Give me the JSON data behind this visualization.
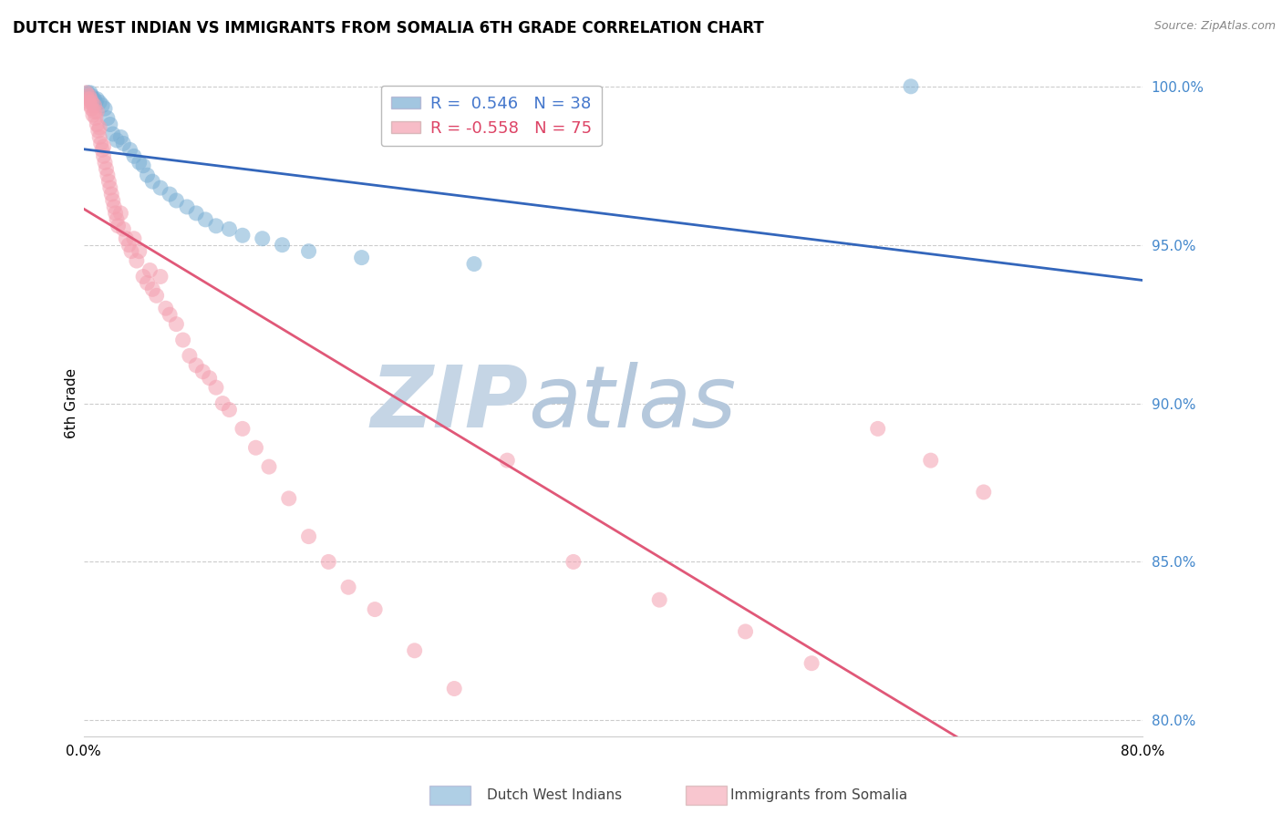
{
  "title": "DUTCH WEST INDIAN VS IMMIGRANTS FROM SOMALIA 6TH GRADE CORRELATION CHART",
  "source": "Source: ZipAtlas.com",
  "ylabel": "6th Grade",
  "xlim": [
    0.0,
    0.8
  ],
  "ylim": [
    0.795,
    1.005
  ],
  "xticks": [
    0.0,
    0.1,
    0.2,
    0.3,
    0.4,
    0.5,
    0.6,
    0.7,
    0.8
  ],
  "xticklabels": [
    "0.0%",
    "",
    "",
    "",
    "",
    "",
    "",
    "",
    "80.0%"
  ],
  "yticks": [
    0.8,
    0.85,
    0.9,
    0.95,
    1.0
  ],
  "yticklabels": [
    "80.0%",
    "85.0%",
    "90.0%",
    "95.0%",
    "100.0%"
  ],
  "blue_R": 0.546,
  "blue_N": 38,
  "pink_R": -0.558,
  "pink_N": 75,
  "blue_color": "#7BAFD4",
  "pink_color": "#F4A0B0",
  "blue_line_color": "#3366BB",
  "pink_line_color": "#E05878",
  "watermark_zip": "ZIP",
  "watermark_atlas": "atlas",
  "watermark_color_zip": "#C8D8E8",
  "watermark_color_atlas": "#B8C8D8",
  "blue_scatter_x": [
    0.003,
    0.004,
    0.005,
    0.006,
    0.007,
    0.008,
    0.009,
    0.01,
    0.012,
    0.014,
    0.016,
    0.018,
    0.02,
    0.022,
    0.025,
    0.028,
    0.03,
    0.035,
    0.038,
    0.042,
    0.045,
    0.048,
    0.052,
    0.058,
    0.065,
    0.07,
    0.078,
    0.085,
    0.092,
    0.1,
    0.11,
    0.12,
    0.135,
    0.15,
    0.17,
    0.21,
    0.295,
    0.625
  ],
  "blue_scatter_y": [
    0.998,
    0.997,
    0.998,
    0.997,
    0.996,
    0.996,
    0.995,
    0.996,
    0.995,
    0.994,
    0.993,
    0.99,
    0.988,
    0.985,
    0.983,
    0.984,
    0.982,
    0.98,
    0.978,
    0.976,
    0.975,
    0.972,
    0.97,
    0.968,
    0.966,
    0.964,
    0.962,
    0.96,
    0.958,
    0.956,
    0.955,
    0.953,
    0.952,
    0.95,
    0.948,
    0.946,
    0.944,
    1.0
  ],
  "pink_scatter_x": [
    0.002,
    0.003,
    0.004,
    0.004,
    0.005,
    0.005,
    0.006,
    0.006,
    0.007,
    0.008,
    0.008,
    0.009,
    0.01,
    0.01,
    0.011,
    0.012,
    0.012,
    0.013,
    0.014,
    0.015,
    0.015,
    0.016,
    0.017,
    0.018,
    0.019,
    0.02,
    0.021,
    0.022,
    0.023,
    0.024,
    0.025,
    0.026,
    0.028,
    0.03,
    0.032,
    0.034,
    0.036,
    0.038,
    0.04,
    0.042,
    0.045,
    0.048,
    0.05,
    0.052,
    0.055,
    0.058,
    0.062,
    0.065,
    0.07,
    0.075,
    0.08,
    0.085,
    0.09,
    0.095,
    0.1,
    0.105,
    0.11,
    0.12,
    0.13,
    0.14,
    0.155,
    0.17,
    0.185,
    0.2,
    0.22,
    0.25,
    0.28,
    0.32,
    0.37,
    0.435,
    0.5,
    0.55,
    0.6,
    0.64,
    0.68
  ],
  "pink_scatter_y": [
    0.998,
    0.996,
    0.997,
    0.995,
    0.994,
    0.996,
    0.993,
    0.995,
    0.991,
    0.992,
    0.994,
    0.99,
    0.988,
    0.992,
    0.986,
    0.984,
    0.987,
    0.982,
    0.98,
    0.978,
    0.981,
    0.976,
    0.974,
    0.972,
    0.97,
    0.968,
    0.966,
    0.964,
    0.962,
    0.96,
    0.958,
    0.956,
    0.96,
    0.955,
    0.952,
    0.95,
    0.948,
    0.952,
    0.945,
    0.948,
    0.94,
    0.938,
    0.942,
    0.936,
    0.934,
    0.94,
    0.93,
    0.928,
    0.925,
    0.92,
    0.915,
    0.912,
    0.91,
    0.908,
    0.905,
    0.9,
    0.898,
    0.892,
    0.886,
    0.88,
    0.87,
    0.858,
    0.85,
    0.842,
    0.835,
    0.822,
    0.81,
    0.882,
    0.85,
    0.838,
    0.828,
    0.818,
    0.892,
    0.882,
    0.872
  ]
}
